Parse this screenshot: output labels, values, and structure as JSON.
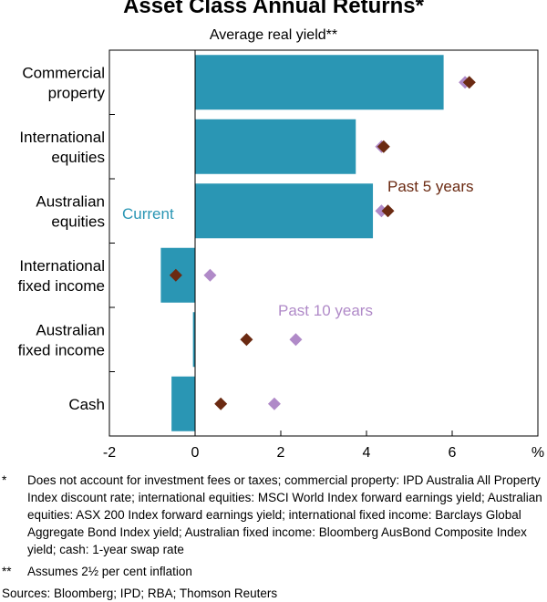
{
  "title": "Asset Class Annual Returns*",
  "subtitle": "Average real yield**",
  "chart_data": {
    "type": "bar",
    "orientation": "horizontal",
    "categories": [
      [
        "Commercial",
        "property"
      ],
      [
        "International",
        "equities"
      ],
      [
        "Australian",
        "equities"
      ],
      [
        "International",
        "fixed income"
      ],
      [
        "Australian",
        "fixed income"
      ],
      [
        "Cash"
      ]
    ],
    "series": [
      {
        "name": "Current",
        "kind": "bar",
        "color": "#2a96b4",
        "values": [
          5.8,
          3.75,
          4.15,
          -0.8,
          -0.05,
          -0.55
        ]
      },
      {
        "name": "Past 5 years",
        "kind": "diamond",
        "color": "#6b2a12",
        "values": [
          6.4,
          4.4,
          4.5,
          -0.45,
          1.2,
          0.6
        ]
      },
      {
        "name": "Past 10 years",
        "kind": "diamond",
        "color": "#b08ac8",
        "values": [
          6.3,
          4.35,
          4.35,
          0.35,
          2.35,
          1.85
        ]
      }
    ],
    "xlim": [
      -2,
      8
    ],
    "xticks": [
      "-2",
      "0",
      "2",
      "4",
      "6"
    ],
    "x_unit": "%",
    "series_labels": {
      "current": "Current",
      "past5": "Past 5 years",
      "past10": "Past 10 years"
    }
  },
  "footnotes": [
    {
      "mark": "*",
      "text": "Does not account for investment fees or taxes; commercial property: IPD Australia All Property Index discount rate; international equities: MSCI World Index forward earnings yield; Australian equities: ASX 200 Index forward earnings yield; international fixed income: Barclays Global Aggregate Bond Index yield; Australian fixed income: Bloomberg AusBond Composite Index yield; cash: 1-year swap rate"
    },
    {
      "mark": "**",
      "text": "Assumes 2½ per cent inflation"
    }
  ],
  "sources": "Sources:  Bloomberg; IPD; RBA; Thomson Reuters"
}
